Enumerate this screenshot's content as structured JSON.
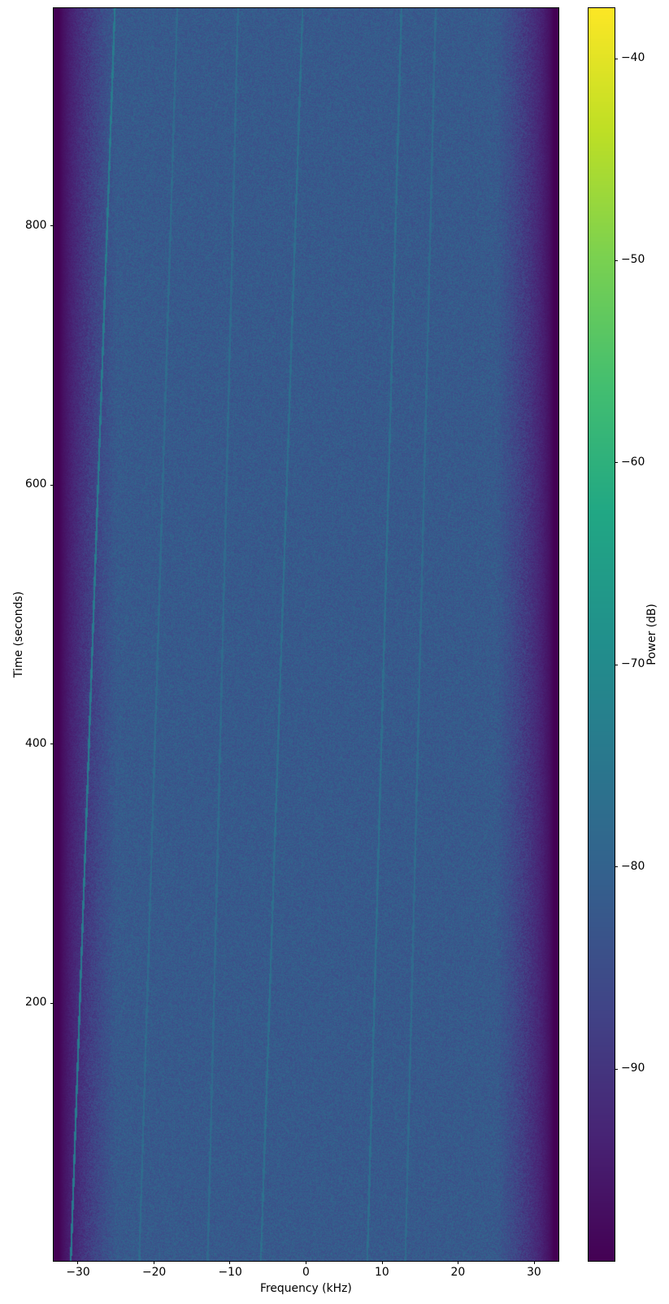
{
  "chart_data": {
    "type": "heatmap",
    "subtype": "spectrogram",
    "title": "",
    "xlabel": "Frequency (kHz)",
    "ylabel": "Time (seconds)",
    "xlim": [
      -33.2,
      33.2
    ],
    "ylim": [
      1,
      968
    ],
    "xticks": [
      -30,
      -20,
      -10,
      0,
      10,
      20,
      30
    ],
    "xtick_labels": [
      "−30",
      "−20",
      "−10",
      "0",
      "10",
      "20",
      "30"
    ],
    "yticks": [
      200,
      400,
      600,
      800
    ],
    "ytick_labels": [
      "200",
      "400",
      "600",
      "800"
    ],
    "colormap": "viridis",
    "colorbar": {
      "label": "Power (dB)",
      "range": [
        -99.5,
        -37.5
      ],
      "ticks": [
        -90,
        -80,
        -70,
        -60,
        -50,
        -40
      ],
      "tick_labels": [
        "−90",
        "−80",
        "−70",
        "−60",
        "−50",
        "−40"
      ]
    },
    "noise_floor_db": -82,
    "out_of_band_db": -99.5,
    "passband_khz": [
      -28,
      28
    ],
    "rolloff_khz": [
      [
        -32.5,
        -25
      ],
      [
        25,
        32.5
      ]
    ],
    "signals": [
      {
        "kind": "drifting tone",
        "freq_khz_at_start": -31,
        "freq_khz_at_end": -25.2,
        "peak_db": -74
      },
      {
        "kind": "faint tone",
        "freq_khz_at_start": -22,
        "freq_khz_at_end": -17,
        "peak_db": -78
      },
      {
        "kind": "faint tone",
        "freq_khz_at_start": -13,
        "freq_khz_at_end": -9,
        "peak_db": -78
      },
      {
        "kind": "faint tone",
        "freq_khz_at_start": -6,
        "freq_khz_at_end": -0.5,
        "peak_db": -77
      },
      {
        "kind": "faint tone",
        "freq_khz_at_start": 8,
        "freq_khz_at_end": 12.5,
        "peak_db": -77
      },
      {
        "kind": "faint tone",
        "freq_khz_at_start": 13,
        "freq_khz_at_end": 17,
        "peak_db": -78
      }
    ]
  }
}
